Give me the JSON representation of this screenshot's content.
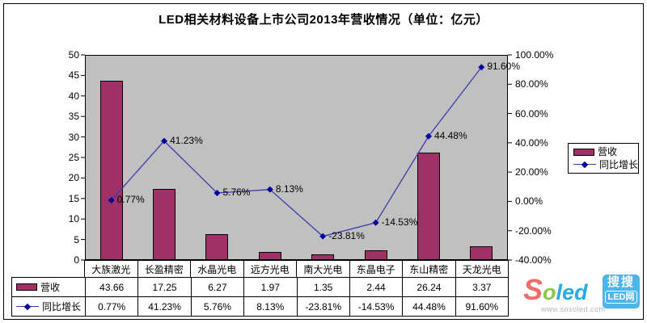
{
  "title": "LED相关材料设备上市公司2013年营收情况（单位：亿元）",
  "chart_data": {
    "type": "bar",
    "subtype": "bar-line-combo",
    "categories": [
      "大族激光",
      "长盈精密",
      "水晶光电",
      "远方光电",
      "南大光电",
      "东晶电子",
      "东山精密",
      "天龙光电"
    ],
    "series": [
      {
        "name": "营收",
        "type": "bar",
        "axis": "left",
        "color": "#9e3166",
        "values": [
          43.66,
          17.25,
          6.27,
          1.97,
          1.35,
          2.44,
          26.24,
          3.37
        ]
      },
      {
        "name": "同比增长",
        "type": "line",
        "axis": "right",
        "color": "#3c3ca8",
        "marker_color": "#0000a0",
        "values": [
          0.77,
          41.23,
          5.76,
          8.13,
          -23.81,
          -14.53,
          44.48,
          91.6
        ],
        "point_labels": [
          "0.77%",
          "41.23%",
          "5.76%",
          "8.13%",
          "-23.81%",
          "-14.53%",
          "44.48%",
          "91.60%"
        ]
      }
    ],
    "left_axis": {
      "min": 0,
      "max": 50,
      "step": 5,
      "ticks": [
        "0",
        "5",
        "10",
        "15",
        "20",
        "25",
        "30",
        "35",
        "40",
        "45",
        "50"
      ]
    },
    "right_axis": {
      "min": -40,
      "max": 100,
      "step": 20,
      "ticks": [
        "-40.00%",
        "-20.00%",
        "0.00%",
        "20.00%",
        "40.00%",
        "60.00%",
        "80.00%",
        "100.00%"
      ]
    },
    "plot_background": "#c0c0c0",
    "grid": "off",
    "legend_position": "right"
  },
  "legend": {
    "entries": [
      {
        "label": "营收"
      },
      {
        "label": "同比增长"
      }
    ]
  },
  "table": {
    "columns": [
      "大族激光",
      "长盈精密",
      "水晶光电",
      "远方光电",
      "南大光电",
      "东晶电子",
      "东山精密",
      "天龙光电"
    ],
    "row_headers": [
      "营收",
      "同比增长"
    ],
    "rows": [
      [
        "43.66",
        "17.25",
        "6.27",
        "1.97",
        "1.35",
        "2.44",
        "26.24",
        "3.37"
      ],
      [
        "0.77%",
        "41.23%",
        "5.76%",
        "8.13%",
        "-23.81%",
        "-14.53%",
        "44.48%",
        "91.60%"
      ]
    ]
  },
  "logo": {
    "brand_s": "S",
    "brand_o": "o",
    "brand_led": "led",
    "badge_line1": "搜搜",
    "badge_line2": "LED网",
    "url": "www.sosoled.com",
    "colors": {
      "s": "#ed6d6b",
      "o": "#8dc63f",
      "led": "#29abe2",
      "badge": "#4db5e8"
    }
  }
}
